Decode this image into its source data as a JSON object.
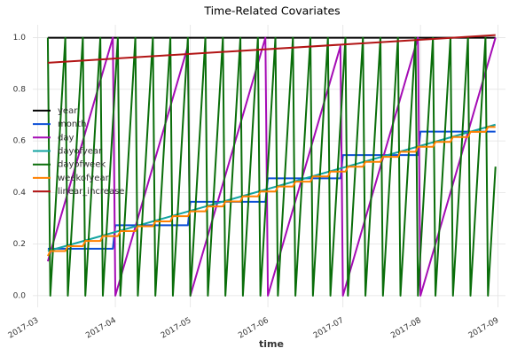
{
  "chart_data": {
    "type": "line",
    "title": "Time-Related Covariates",
    "x_label": "time",
    "xlim": [
      "2017-02-27",
      "2017-09-04"
    ],
    "xticks": [
      "2017-03",
      "2017-04",
      "2017-05",
      "2017-06",
      "2017-07",
      "2017-08",
      "2017-09"
    ],
    "ylim": [
      -0.045,
      1.05
    ],
    "yticks": [
      {
        "value": 0,
        "label": "0.0"
      },
      0.2,
      0.4,
      0.6,
      0.8,
      {
        "value": 1,
        "label": "1.0"
      }
    ],
    "grid": true,
    "legend": "center left",
    "series": [
      {
        "name": "year",
        "color": "#000000",
        "x": [
          "2017-03-05",
          "2017-08-31"
        ],
        "values": [
          1,
          1
        ]
      },
      {
        "name": "month",
        "color": "#0b4fd6",
        "x": [
          "2017-03-05",
          "2017-03-31",
          "2017-04-01",
          "2017-04-30",
          "2017-05-01",
          "2017-05-31",
          "2017-06-01",
          "2017-06-30",
          "2017-07-01",
          "2017-07-31",
          "2017-08-01",
          "2017-08-31"
        ],
        "values": [
          0.182,
          0.182,
          0.273,
          0.273,
          0.364,
          0.364,
          0.455,
          0.455,
          0.545,
          0.545,
          0.636,
          0.636
        ]
      },
      {
        "name": "day",
        "color": "#a50cb5",
        "x": [
          "2017-03-05",
          "2017-03-31",
          "2017-04-01",
          "2017-04-30",
          "2017-05-01",
          "2017-05-31",
          "2017-06-01",
          "2017-06-30",
          "2017-07-01",
          "2017-07-31",
          "2017-08-01",
          "2017-08-31"
        ],
        "values": [
          0.133,
          1,
          0,
          0.967,
          0,
          1,
          0,
          0.967,
          0,
          1,
          0,
          1
        ]
      },
      {
        "name": "dayofyear",
        "color": "#12a3a0",
        "x": [
          "2017-03-05",
          "2017-08-31"
        ],
        "values": [
          0.173,
          0.663
        ]
      },
      {
        "name": "dayofweek",
        "color": "#0a6e0a",
        "x": [
          "2017-03-05",
          "2017-03-06",
          "2017-03-12",
          "2017-03-13",
          "2017-03-19",
          "2017-03-20",
          "2017-03-26",
          "2017-03-27",
          "2017-04-02",
          "2017-04-03",
          "2017-04-09",
          "2017-04-10",
          "2017-04-16",
          "2017-04-17",
          "2017-04-23",
          "2017-04-24",
          "2017-04-30",
          "2017-05-01",
          "2017-05-07",
          "2017-05-08",
          "2017-05-14",
          "2017-05-15",
          "2017-05-21",
          "2017-05-22",
          "2017-05-28",
          "2017-05-29",
          "2017-06-04",
          "2017-06-05",
          "2017-06-11",
          "2017-06-12",
          "2017-06-18",
          "2017-06-19",
          "2017-06-25",
          "2017-06-26",
          "2017-07-02",
          "2017-07-03",
          "2017-07-09",
          "2017-07-10",
          "2017-07-16",
          "2017-07-17",
          "2017-07-23",
          "2017-07-24",
          "2017-07-30",
          "2017-07-31",
          "2017-08-06",
          "2017-08-07",
          "2017-08-13",
          "2017-08-14",
          "2017-08-20",
          "2017-08-21",
          "2017-08-27",
          "2017-08-28",
          "2017-08-31"
        ],
        "values": [
          1,
          0,
          1,
          0,
          1,
          0,
          1,
          0,
          1,
          0,
          1,
          0,
          1,
          0,
          1,
          0,
          1,
          0,
          1,
          0,
          1,
          0,
          1,
          0,
          1,
          0,
          1,
          0,
          1,
          0,
          1,
          0,
          1,
          0,
          1,
          0,
          1,
          0,
          1,
          0,
          1,
          0,
          1,
          0,
          1,
          0,
          1,
          0,
          1,
          0,
          1,
          0,
          0.5
        ]
      },
      {
        "name": "weekofyear",
        "color": "#ff8000",
        "x": [
          "2017-03-05",
          "2017-03-06",
          "2017-03-12",
          "2017-03-13",
          "2017-03-19",
          "2017-03-20",
          "2017-03-26",
          "2017-03-27",
          "2017-04-02",
          "2017-04-03",
          "2017-04-09",
          "2017-04-10",
          "2017-04-16",
          "2017-04-17",
          "2017-04-23",
          "2017-04-24",
          "2017-04-30",
          "2017-05-01",
          "2017-05-07",
          "2017-05-08",
          "2017-05-14",
          "2017-05-15",
          "2017-05-21",
          "2017-05-22",
          "2017-05-28",
          "2017-05-29",
          "2017-06-04",
          "2017-06-05",
          "2017-06-11",
          "2017-06-12",
          "2017-06-18",
          "2017-06-19",
          "2017-06-25",
          "2017-06-26",
          "2017-07-02",
          "2017-07-03",
          "2017-07-09",
          "2017-07-10",
          "2017-07-16",
          "2017-07-17",
          "2017-07-23",
          "2017-07-24",
          "2017-07-30",
          "2017-07-31",
          "2017-08-06",
          "2017-08-07",
          "2017-08-13",
          "2017-08-14",
          "2017-08-20",
          "2017-08-21",
          "2017-08-27",
          "2017-08-28",
          "2017-08-31"
        ],
        "values": [
          0.154,
          0.173,
          0.173,
          0.192,
          0.192,
          0.212,
          0.212,
          0.231,
          0.231,
          0.25,
          0.25,
          0.269,
          0.269,
          0.288,
          0.288,
          0.308,
          0.308,
          0.327,
          0.327,
          0.346,
          0.346,
          0.365,
          0.365,
          0.385,
          0.385,
          0.404,
          0.404,
          0.423,
          0.423,
          0.442,
          0.442,
          0.462,
          0.462,
          0.481,
          0.481,
          0.5,
          0.5,
          0.519,
          0.519,
          0.538,
          0.538,
          0.558,
          0.558,
          0.577,
          0.577,
          0.596,
          0.596,
          0.615,
          0.615,
          0.635,
          0.635,
          0.654,
          0.654
        ]
      },
      {
        "name": "linear_increase",
        "color": "#b21515",
        "x": [
          "2017-03-05",
          "2017-08-31"
        ],
        "values": [
          0.903,
          1.01
        ]
      }
    ]
  }
}
